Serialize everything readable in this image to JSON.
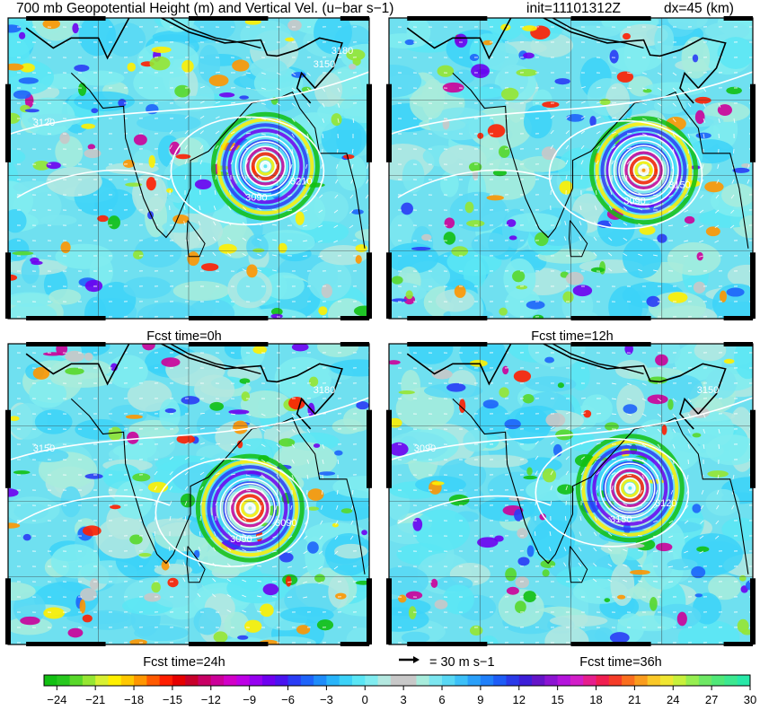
{
  "header": {
    "title": "700 mb Geopotential Height (m) and Vertical Vel. (u−bar s−1)",
    "init": "init=11101312Z",
    "dx": "dx=45 (km)"
  },
  "panels": [
    {
      "caption": "Fcst time=0h",
      "contour_labels": [
        "3090",
        "3210",
        "3120",
        "3150",
        "3180"
      ]
    },
    {
      "caption": "Fcst time=12h",
      "contour_labels": [
        "3090",
        "3150"
      ]
    },
    {
      "caption": "Fcst time=24h",
      "contour_labels": [
        "3090",
        "3090",
        "3150",
        "3180"
      ]
    },
    {
      "caption": "Fcst time=36h",
      "contour_labels": [
        "3150",
        "3120",
        "3090",
        "3150"
      ]
    }
  ],
  "vector_legend": {
    "label": "= 30 m s−1",
    "reference_speed": 30
  },
  "chart_data": {
    "type": "heatmap",
    "field": "vertical velocity (shaded) with geopotential height contours and wind vectors",
    "colorbar": {
      "min": -25,
      "max": 30,
      "step": 1,
      "ticks": [
        -24,
        -21,
        -18,
        -15,
        -12,
        -9,
        -6,
        -3,
        0,
        3,
        6,
        9,
        12,
        15,
        18,
        21,
        24,
        27,
        30
      ],
      "tick_labels": [
        "−24",
        "−21",
        "−18",
        "−15",
        "−12",
        "−9",
        "−6",
        "−3",
        "0",
        "3",
        "6",
        "9",
        "12",
        "15",
        "18",
        "21",
        "24",
        "27",
        "30"
      ],
      "colors": [
        "#12c012",
        "#28c81e",
        "#58d82a",
        "#96e632",
        "#d8f032",
        "#fff000",
        "#ffc800",
        "#ff9600",
        "#ff5a00",
        "#ff1e00",
        "#e60000",
        "#c8002a",
        "#c80064",
        "#cc0099",
        "#d200c8",
        "#be00e6",
        "#9600f0",
        "#6e00f0",
        "#4a14f0",
        "#2a3cf5",
        "#1e64fa",
        "#1e8cfa",
        "#28b4fa",
        "#3cd2f8",
        "#5ae6f5",
        "#80ecf0",
        "#b4e8e0",
        "#c8c8c8",
        "#c8c8c8",
        "#a8ecdc",
        "#7ce6f0",
        "#58d8f4",
        "#3cc0f8",
        "#2aa0fa",
        "#2080fa",
        "#1e5cf6",
        "#2a3ae8",
        "#3c1ed8",
        "#6414c8",
        "#8c14d2",
        "#b414dc",
        "#d21ec8",
        "#e61e8c",
        "#f01e50",
        "#f53c28",
        "#fa6e1e",
        "#fa9c1e",
        "#fac828",
        "#f0e632",
        "#c8f03c",
        "#96ee50",
        "#6ee864",
        "#50e878",
        "#3ce890",
        "#28e8a8"
      ]
    },
    "series": [
      {
        "name": "Fcst time=0h",
        "cyclone_center": [
          88.5,
          15.2
        ]
      },
      {
        "name": "Fcst time=12h",
        "cyclone_center": [
          88.0,
          14.8
        ]
      },
      {
        "name": "Fcst time=24h",
        "cyclone_center": [
          86.8,
          13.6
        ]
      },
      {
        "name": "Fcst time=36h",
        "cyclone_center": [
          86.5,
          15.6
        ]
      }
    ]
  }
}
